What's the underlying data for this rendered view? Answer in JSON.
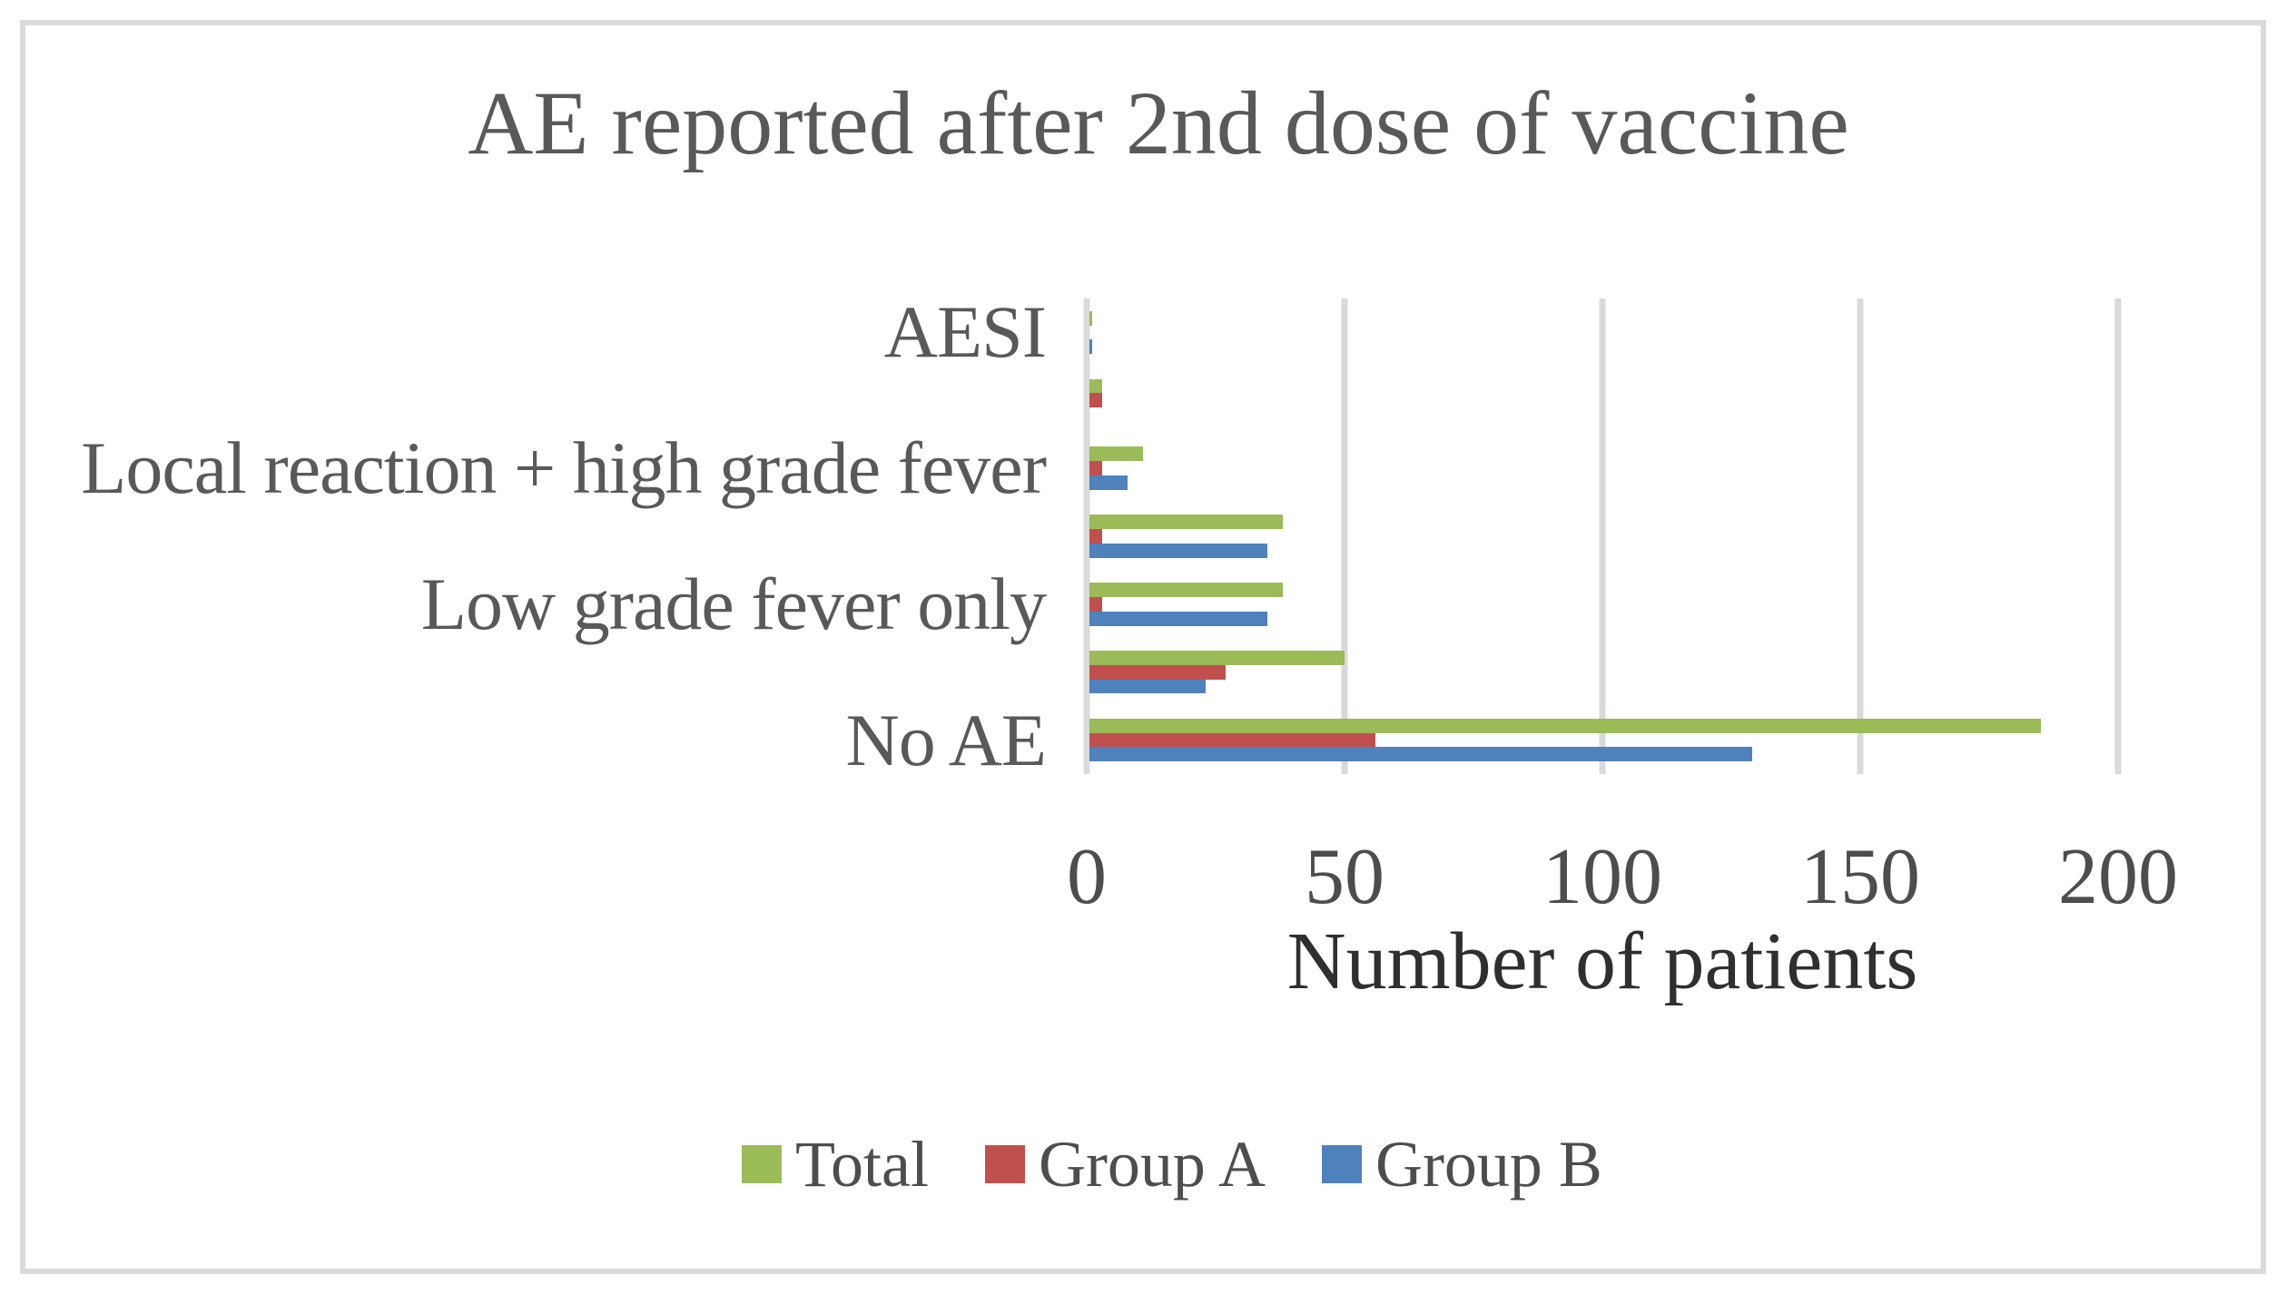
{
  "chart_data": {
    "type": "bar",
    "orientation": "horizontal",
    "title": "AE reported after 2nd dose of vaccine",
    "xlabel": "Number of patients",
    "ylabel": "",
    "xlim": [
      0,
      200
    ],
    "x_ticks": [
      "0",
      "50",
      "100",
      "150",
      "200"
    ],
    "grid": true,
    "legend_position": "bottom",
    "categories": [
      "AESI",
      "",
      "Local reaction + high grade fever",
      "",
      "Low grade fever only",
      "",
      "No AE"
    ],
    "series": [
      {
        "name": "Total",
        "color": "#9BBB59",
        "values": [
          1,
          3,
          11,
          38,
          38,
          50,
          185
        ]
      },
      {
        "name": "Group A",
        "color": "#C0504D",
        "values": [
          0,
          3,
          3,
          3,
          3,
          27,
          56
        ]
      },
      {
        "name": "Group B",
        "color": "#4F81BD",
        "values": [
          1,
          0,
          8,
          35,
          35,
          23,
          129
        ]
      }
    ]
  },
  "styles": {
    "background": "#ffffff",
    "border_color": "#dadada",
    "gridline_color": "#d9d9d9",
    "title_color": "#595959",
    "category_label_color": "#595959",
    "tick_label_color": "#4d4d4d",
    "axis_title_color": "#2f2f2f",
    "legend_text_color": "#4d4d4d"
  }
}
